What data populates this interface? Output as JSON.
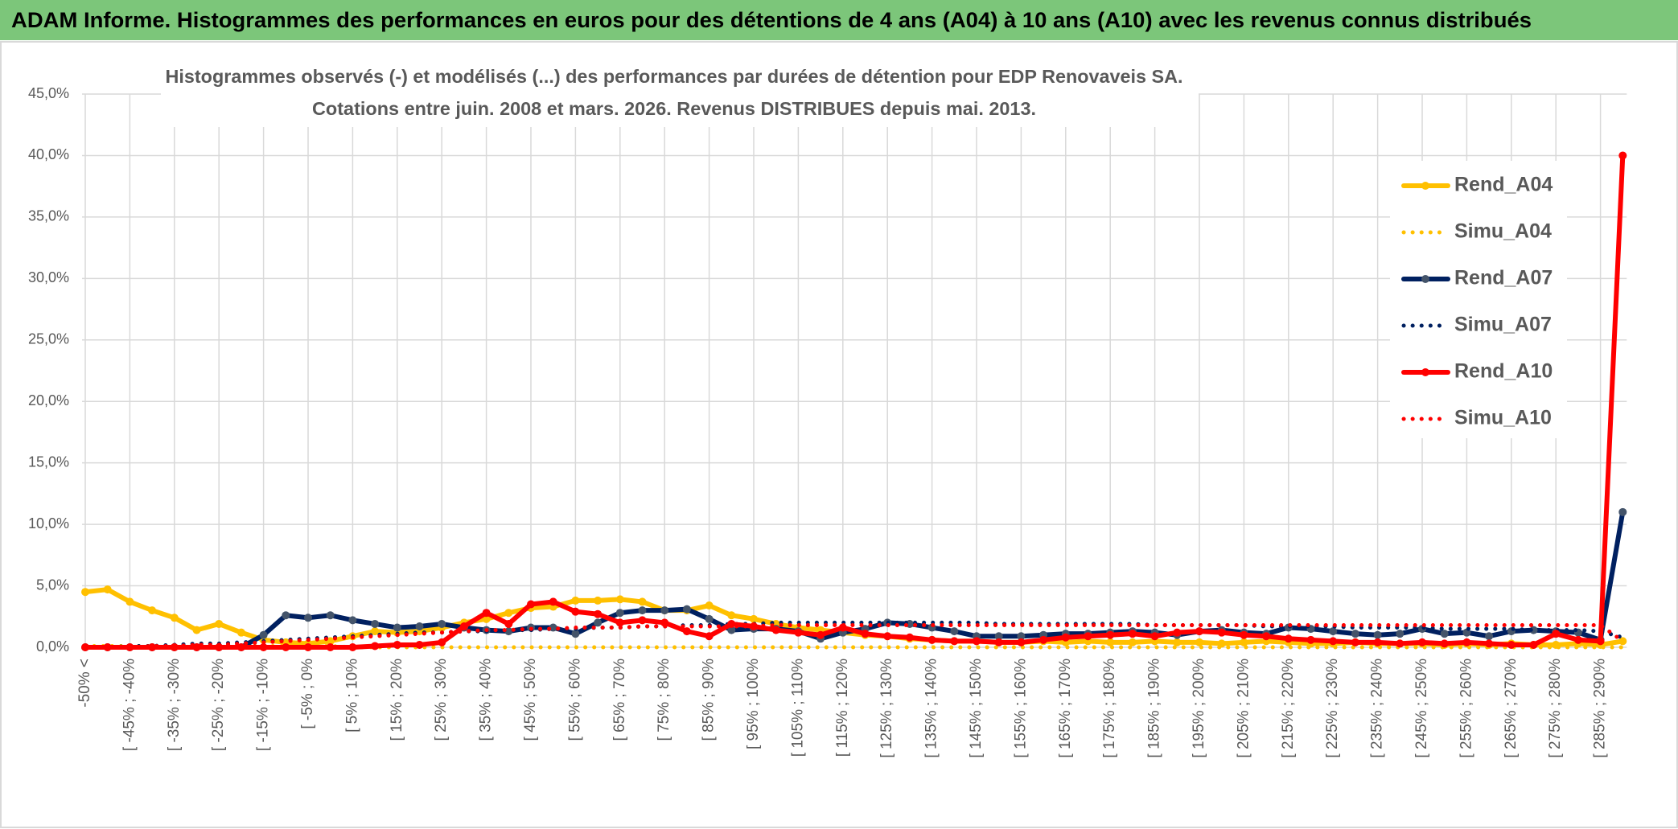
{
  "header": {
    "title": "ADAM Informe. Histogrammes des performances en euros pour des détentions de 4 ans (A04) à 10 ans (A10) avec les revenus connus distribués"
  },
  "chart_data": {
    "type": "line",
    "title": "Histogrammes observés (-) et modélisés (...) des performances par durées de détention pour EDP Renovaveis SA.",
    "subtitle": "Cotations entre juin. 2008 et mars. 2026. Revenus DISTRIBUES depuis mai. 2013.",
    "categories": [
      "-50% <",
      null,
      "[ -45% ; -40%",
      null,
      "[ -35% ; -30%",
      null,
      "[ -25% ; -20%",
      null,
      "[ -15% ; -10%",
      null,
      "[ -5% ; 0%",
      null,
      "[ 5% ; 10%",
      null,
      "[ 15% ; 20%",
      null,
      "[ 25% ; 30%",
      null,
      "[ 35% ; 40%",
      null,
      "[ 45% ; 50%",
      null,
      "[ 55% ; 60%",
      null,
      "[ 65% ; 70%",
      null,
      "[ 75% ; 80%",
      null,
      "[ 85% ; 90%",
      null,
      "[ 95% ; 100%",
      null,
      "[ 105% ; 110%",
      null,
      "[ 115% ; 120%",
      null,
      "[ 125% ; 130%",
      null,
      "[ 135% ; 140%",
      null,
      "[ 145% ; 150%",
      null,
      "[ 155% ; 160%",
      null,
      "[ 165% ; 170%",
      null,
      "[ 175% ; 180%",
      null,
      "[ 185% ; 190%",
      null,
      "[ 195% ; 200%",
      null,
      "[ 205% ; 210%",
      null,
      "[ 215% ; 220%",
      null,
      "[ 225% ; 230%",
      null,
      "[ 235% ; 240%",
      null,
      "[ 245% ; 250%",
      null,
      "[ 255% ; 260%",
      null,
      "[ 265% ; 270%",
      null,
      "[ 275% ; 280%",
      null,
      "[ 285% ; 290%",
      null
    ],
    "ylim": [
      0,
      45
    ],
    "yticks": [
      {
        "value": 0,
        "label": "0,0%"
      },
      {
        "value": 5,
        "label": "5,0%"
      },
      {
        "value": 10,
        "label": "10,0%"
      },
      {
        "value": 15,
        "label": "15,0%"
      },
      {
        "value": 20,
        "label": "20,0%"
      },
      {
        "value": 25,
        "label": "25,0%"
      },
      {
        "value": 30,
        "label": "30,0%"
      },
      {
        "value": 35,
        "label": "35,0%"
      },
      {
        "value": 40,
        "label": "40,0%"
      },
      {
        "value": 45,
        "label": "45,0%"
      }
    ],
    "grid": true,
    "legend": "right",
    "series": [
      {
        "name": "Rend_A04",
        "color": "#FFC000",
        "style": "solid",
        "markers": true,
        "values": [
          4.5,
          4.7,
          3.7,
          3.0,
          2.4,
          1.4,
          1.9,
          1.2,
          0.6,
          0.4,
          0.3,
          0.5,
          0.9,
          1.3,
          1.2,
          1.3,
          1.6,
          2.0,
          2.3,
          2.8,
          3.2,
          3.3,
          3.8,
          3.8,
          3.9,
          3.7,
          3.0,
          3.0,
          3.4,
          2.6,
          2.3,
          1.9,
          1.6,
          1.4,
          1.2,
          1.0,
          0.9,
          0.7,
          0.6,
          0.5,
          0.5,
          0.4,
          0.4,
          0.5,
          0.4,
          0.5,
          0.4,
          0.4,
          0.5,
          0.4,
          0.4,
          0.3,
          0.4,
          0.5,
          0.4,
          0.3,
          0.3,
          0.4,
          0.3,
          0.3,
          0.3,
          0.2,
          0.3,
          0.2,
          0.3,
          0.2,
          0.2,
          0.3,
          0.2,
          0.5
        ]
      },
      {
        "name": "Simu_A04",
        "color": "#FFC000",
        "style": "dotted",
        "markers": false,
        "values": [
          0.1,
          0.1,
          0.1,
          0.1,
          0.1,
          0.1,
          0.1,
          0.1,
          0.1,
          0.1,
          0.1,
          0.1,
          0,
          0,
          0,
          0,
          0,
          0,
          0,
          0,
          0,
          0,
          0,
          0,
          0,
          0,
          0,
          0,
          0,
          0,
          0,
          0,
          0,
          0,
          0,
          0,
          0,
          0,
          0,
          0,
          0,
          0,
          0,
          0,
          0,
          0,
          0,
          0,
          0,
          0,
          0,
          0,
          0,
          0,
          0,
          0,
          0,
          0,
          0,
          0,
          0,
          0,
          0,
          0,
          0,
          0,
          0,
          0,
          0,
          0
        ]
      },
      {
        "name": "Rend_A07",
        "color": "#002060",
        "style": "solid",
        "markers": true,
        "values": [
          0,
          0,
          0,
          0,
          0,
          0,
          0,
          0,
          1.0,
          2.6,
          2.4,
          2.6,
          2.2,
          1.9,
          1.6,
          1.7,
          1.9,
          1.6,
          1.4,
          1.3,
          1.6,
          1.6,
          1.1,
          2.0,
          2.8,
          3.0,
          3.0,
          3.1,
          2.3,
          1.4,
          1.5,
          1.5,
          1.3,
          0.7,
          1.2,
          1.5,
          2.0,
          1.9,
          1.6,
          1.3,
          0.9,
          0.9,
          0.9,
          1.0,
          1.1,
          1.1,
          1.2,
          1.3,
          1.2,
          1.0,
          1.3,
          1.4,
          1.2,
          1.1,
          1.6,
          1.5,
          1.3,
          1.1,
          1.0,
          1.1,
          1.5,
          1.1,
          1.2,
          0.9,
          1.3,
          1.4,
          1.3,
          1.2,
          0.6,
          11.0
        ]
      },
      {
        "name": "Simu_A07",
        "color": "#002060",
        "style": "dotted",
        "markers": false,
        "values": [
          0,
          0,
          0.1,
          0.1,
          0.2,
          0.3,
          0.3,
          0.4,
          0.5,
          0.6,
          0.7,
          0.8,
          0.9,
          1.0,
          1.1,
          1.2,
          1.2,
          1.3,
          1.3,
          1.4,
          1.4,
          1.5,
          1.5,
          1.6,
          1.6,
          1.7,
          1.7,
          1.8,
          1.8,
          1.9,
          1.9,
          2.0,
          2.0,
          2.0,
          2.0,
          2.0,
          2.0,
          2.0,
          2.0,
          2.0,
          2.0,
          1.9,
          1.9,
          1.9,
          1.9,
          1.9,
          1.9,
          1.9,
          1.8,
          1.8,
          1.8,
          1.8,
          1.8,
          1.7,
          1.7,
          1.7,
          1.7,
          1.6,
          1.6,
          1.6,
          1.6,
          1.5,
          1.5,
          1.5,
          1.5,
          1.4,
          1.4,
          1.4,
          1.3,
          0.8
        ]
      },
      {
        "name": "Rend_A10",
        "color": "#FF0000",
        "style": "solid",
        "markers": true,
        "values": [
          0,
          0,
          0,
          0,
          0,
          0,
          0,
          0,
          0,
          0,
          0,
          0,
          0,
          0.1,
          0.2,
          0.2,
          0.4,
          1.7,
          2.8,
          1.9,
          3.5,
          3.7,
          2.9,
          2.7,
          2.0,
          2.2,
          2.0,
          1.3,
          0.9,
          1.9,
          1.7,
          1.4,
          1.2,
          1.0,
          1.6,
          1.1,
          0.9,
          0.8,
          0.6,
          0.5,
          0.5,
          0.4,
          0.4,
          0.6,
          0.8,
          0.9,
          1.0,
          1.1,
          0.9,
          1.2,
          1.3,
          1.2,
          1.0,
          0.9,
          0.7,
          0.6,
          0.5,
          0.4,
          0.4,
          0.3,
          0.4,
          0.3,
          0.4,
          0.3,
          0.2,
          0.2,
          1.1,
          0.6,
          0.5,
          40.0
        ]
      },
      {
        "name": "Simu_A10",
        "color": "#FF0000",
        "style": "dotted",
        "markers": false,
        "values": [
          0,
          0,
          0,
          0.1,
          0.1,
          0.2,
          0.2,
          0.3,
          0.4,
          0.5,
          0.6,
          0.7,
          0.8,
          0.9,
          1.0,
          1.1,
          1.2,
          1.3,
          1.4,
          1.4,
          1.5,
          1.5,
          1.6,
          1.6,
          1.6,
          1.7,
          1.7,
          1.7,
          1.7,
          1.7,
          1.7,
          1.8,
          1.8,
          1.8,
          1.8,
          1.8,
          1.8,
          1.8,
          1.8,
          1.8,
          1.8,
          1.8,
          1.8,
          1.8,
          1.8,
          1.8,
          1.8,
          1.8,
          1.8,
          1.8,
          1.8,
          1.8,
          1.8,
          1.8,
          1.8,
          1.8,
          1.8,
          1.8,
          1.8,
          1.8,
          1.8,
          1.8,
          1.8,
          1.8,
          1.8,
          1.8,
          1.8,
          1.8,
          1.8,
          0.5
        ]
      }
    ]
  }
}
